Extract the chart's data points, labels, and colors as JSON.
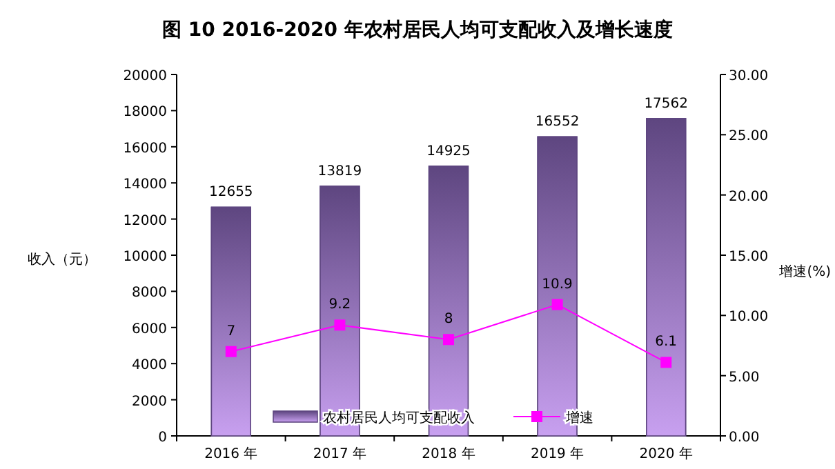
{
  "chart_data": {
    "type": "bar",
    "title": "图 10 2016-2020 年农村居民人均可支配收入及增长速度",
    "ylabel": "收入（元）",
    "y2label": "增速(%)",
    "categories": [
      "2016 年",
      "2017 年",
      "2018 年",
      "2019 年",
      "2020 年"
    ],
    "series": [
      {
        "name": "农村居民人均可支配收入",
        "color": "#5e4680",
        "values": [
          12655,
          13819,
          14925,
          16552,
          17562
        ]
      },
      {
        "name": "增速",
        "type": "line",
        "axis": "y2",
        "color": "#ff00ff",
        "marker": "square",
        "values": [
          7,
          9.2,
          8,
          10.9,
          6.1
        ]
      }
    ],
    "ylim": [
      0,
      20000
    ],
    "yticks": [
      0,
      2000,
      4000,
      6000,
      8000,
      10000,
      12000,
      14000,
      16000,
      18000,
      20000
    ],
    "y2lim": [
      0,
      30
    ],
    "y2ticks": [
      {
        "value": 0,
        "label": "0.00"
      },
      {
        "value": 5,
        "label": "5.00"
      },
      {
        "value": 10,
        "label": "10.00"
      },
      {
        "value": 15,
        "label": "15.00"
      },
      {
        "value": 20,
        "label": "20.00"
      },
      {
        "value": 25,
        "label": "25.00"
      },
      {
        "value": 30,
        "label": "30.00"
      }
    ],
    "data_labels": true,
    "legend": "bottom",
    "grid": false
  }
}
